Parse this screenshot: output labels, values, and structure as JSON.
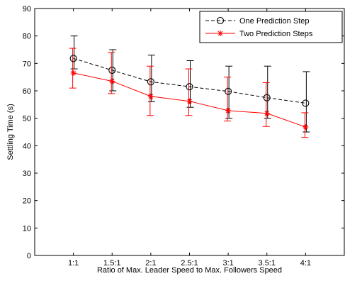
{
  "chart_data": {
    "type": "line",
    "title": "",
    "xlabel": "Ratio of Max. Leader Speed to Max. Followers Speed",
    "ylabel": "Settling Time (s)",
    "categories": [
      "1:1",
      "1.5:1",
      "2:1",
      "2.5:1",
      "3:1",
      "3.5:1",
      "4:1"
    ],
    "ylim": [
      0,
      90
    ],
    "yticks": [
      0,
      10,
      20,
      30,
      40,
      50,
      60,
      70,
      80,
      90
    ],
    "grid": false,
    "legend_position": "top-right",
    "series": [
      {
        "name": "One Prediction Step",
        "color": "#000000",
        "line_style": "dashed",
        "marker": "circle",
        "values": [
          71.8,
          67.5,
          63.3,
          61.5,
          59.8,
          57.5,
          55.5
        ],
        "error_upper": [
          80,
          75,
          73,
          71,
          69,
          69,
          67
        ],
        "error_lower": [
          68,
          60,
          56,
          54,
          50,
          50,
          45
        ]
      },
      {
        "name": "Two Prediction Steps",
        "color": "#ff0000",
        "line_style": "solid",
        "marker": "asterisk",
        "values": [
          66.5,
          63.5,
          58.0,
          56.2,
          52.8,
          51.8,
          46.8
        ],
        "error_upper": [
          75.5,
          74,
          69,
          68,
          65,
          63,
          52
        ],
        "error_lower": [
          61,
          59,
          51,
          51,
          49,
          47,
          43
        ]
      }
    ]
  }
}
